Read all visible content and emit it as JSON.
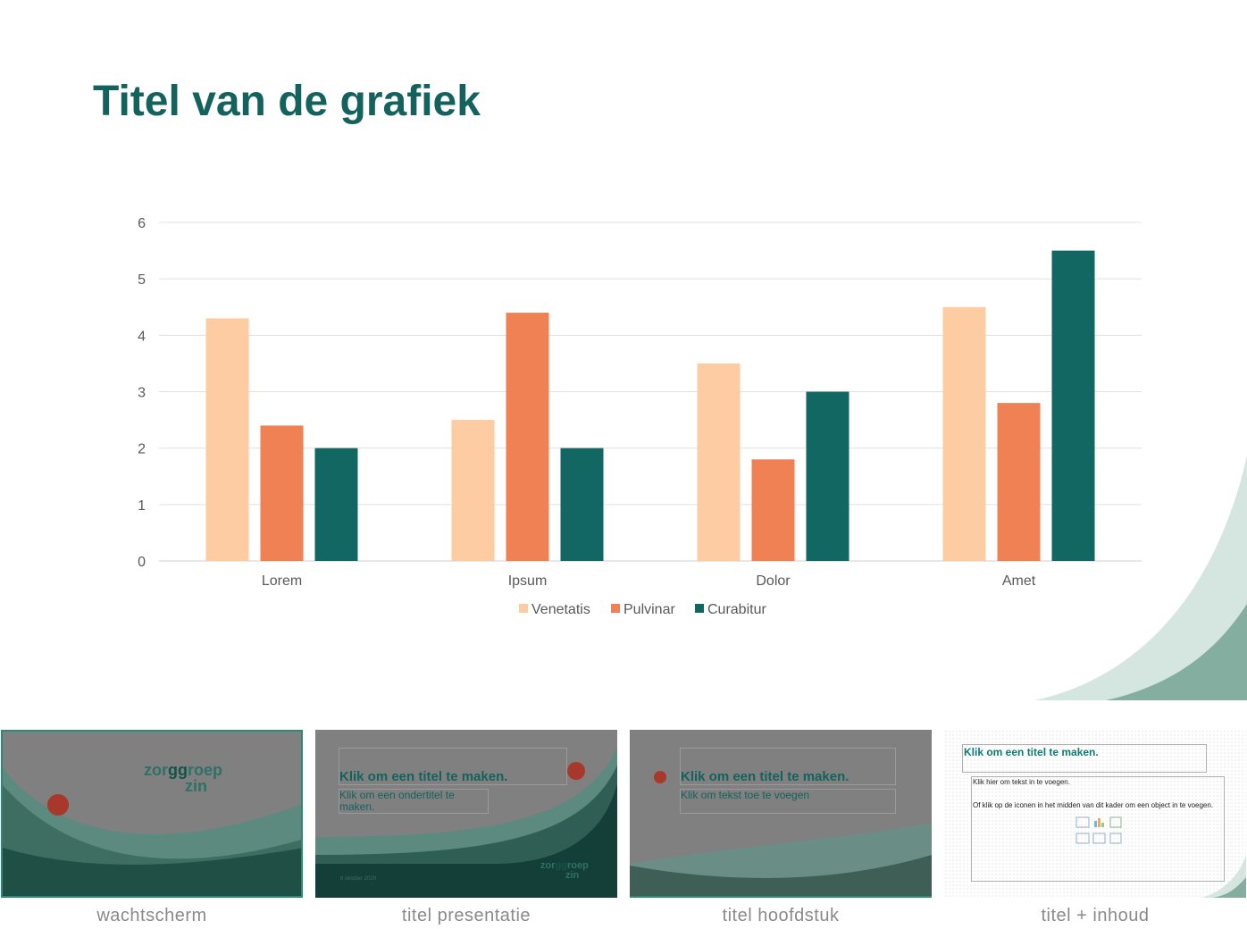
{
  "slide": {
    "title": "Titel van de grafiek"
  },
  "chart_data": {
    "type": "bar",
    "categories": [
      "Lorem",
      "Ipsum",
      "Dolor",
      "Amet"
    ],
    "series": [
      {
        "name": "Venetatis",
        "values": [
          4.3,
          2.5,
          3.5,
          4.5
        ],
        "color": "#fdcca3"
      },
      {
        "name": "Pulvinar",
        "values": [
          2.4,
          4.4,
          1.8,
          2.8
        ],
        "color": "#ef8154"
      },
      {
        "name": "Curabitur",
        "values": [
          2,
          2,
          3,
          5.5
        ],
        "color": "#136762"
      }
    ],
    "ylim": [
      0,
      6
    ],
    "yticks": [
      "0",
      "1",
      "2",
      "3",
      "4",
      "5",
      "6"
    ],
    "grid": true,
    "legend": "bottom"
  },
  "thumbnails": [
    {
      "label": "wachtscherm",
      "logo_top": "zorggroep",
      "logo_bottom": "zin"
    },
    {
      "label": "titel presentatie",
      "title": "Klik om een titel te maken.",
      "subtitle": "Klik om een ondertitel te maken.",
      "date": "8 oktober 2020",
      "logo_top": "zorggroep",
      "logo_bottom": "zin"
    },
    {
      "label": "titel hoofdstuk",
      "title": "Klik om een titel te maken.",
      "subtitle": "Klik om tekst toe te voegen"
    },
    {
      "label": "titel + inhoud",
      "title": "Klik om een titel te maken.",
      "text1": "Klik hier om tekst in te voegen.",
      "text2": "Of klik op de iconen in het midden van dit kader om een object in te voegen."
    }
  ],
  "colors": {
    "brand": "#14625e",
    "accent_red": "#b03a2e",
    "light_green": "#d4e6df",
    "mid_green": "#84ae9f"
  }
}
